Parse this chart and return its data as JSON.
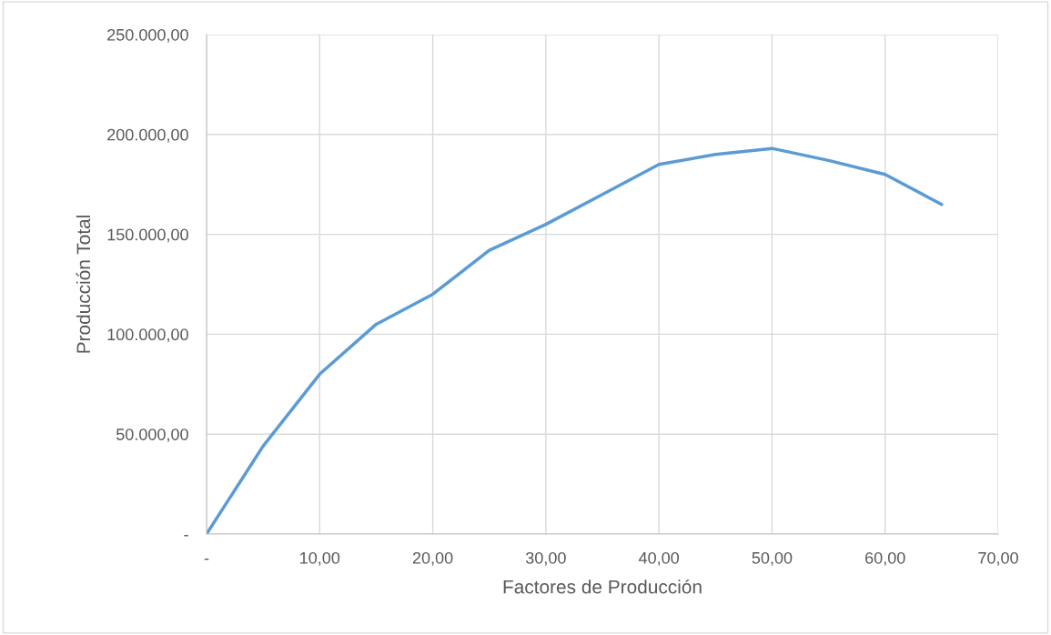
{
  "chart_data": {
    "type": "line",
    "xlabel": "Factores de Producción",
    "ylabel": "Producción Total",
    "x": [
      0,
      5,
      10,
      15,
      20,
      25,
      30,
      35,
      40,
      45,
      50,
      55,
      60,
      65
    ],
    "series": [
      {
        "color": "#5b9bd5",
        "values": [
          0,
          44000,
          80000,
          105000,
          120000,
          142000,
          155000,
          170000,
          185000,
          190000,
          193000,
          187000,
          180000,
          165000
        ]
      }
    ],
    "xlim": [
      0,
      70
    ],
    "ylim": [
      0,
      250000
    ],
    "xticks": [
      {
        "value": 0,
        "label": "-"
      },
      {
        "value": 10,
        "label": "10,00"
      },
      {
        "value": 20,
        "label": "20,00"
      },
      {
        "value": 30,
        "label": "30,00"
      },
      {
        "value": 40,
        "label": "40,00"
      },
      {
        "value": 50,
        "label": "50,00"
      },
      {
        "value": 60,
        "label": "60,00"
      },
      {
        "value": 70,
        "label": "70,00"
      }
    ],
    "yticks": [
      {
        "value": 0,
        "label": "-"
      },
      {
        "value": 50000,
        "label": "50.000,00"
      },
      {
        "value": 100000,
        "label": "100.000,00"
      },
      {
        "value": 150000,
        "label": "150.000,00"
      },
      {
        "value": 200000,
        "label": "200.000,00"
      },
      {
        "value": 250000,
        "label": "250.000,00"
      }
    ],
    "grid": true,
    "legend": false,
    "marker": "none",
    "line_style": "solid"
  }
}
